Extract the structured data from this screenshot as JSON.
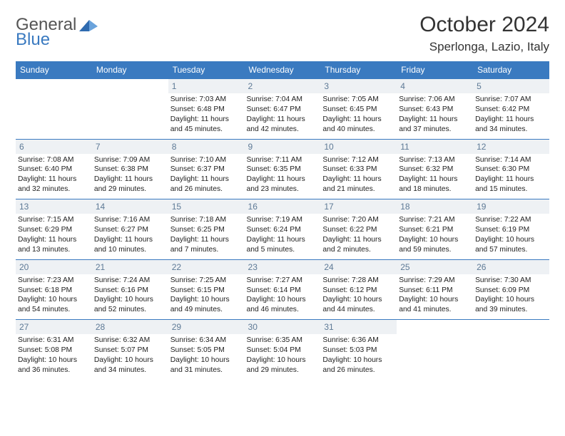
{
  "logo": {
    "text_top": "General",
    "text_bottom": "Blue"
  },
  "title": {
    "month_year": "October 2024",
    "location": "Sperlonga, Lazio, Italy"
  },
  "colors": {
    "header_bg": "#3a7ac0",
    "header_text": "#ffffff",
    "daynum_bg": "#eef1f4",
    "daynum_text": "#5e7a96",
    "rule": "#3a7ac0",
    "body_text": "#222222"
  },
  "day_headers": [
    "Sunday",
    "Monday",
    "Tuesday",
    "Wednesday",
    "Thursday",
    "Friday",
    "Saturday"
  ],
  "weeks": [
    [
      null,
      null,
      {
        "n": "1",
        "sunrise": "7:03 AM",
        "sunset": "6:48 PM",
        "day_h": "11",
        "day_m": "45"
      },
      {
        "n": "2",
        "sunrise": "7:04 AM",
        "sunset": "6:47 PM",
        "day_h": "11",
        "day_m": "42"
      },
      {
        "n": "3",
        "sunrise": "7:05 AM",
        "sunset": "6:45 PM",
        "day_h": "11",
        "day_m": "40"
      },
      {
        "n": "4",
        "sunrise": "7:06 AM",
        "sunset": "6:43 PM",
        "day_h": "11",
        "day_m": "37"
      },
      {
        "n": "5",
        "sunrise": "7:07 AM",
        "sunset": "6:42 PM",
        "day_h": "11",
        "day_m": "34"
      }
    ],
    [
      {
        "n": "6",
        "sunrise": "7:08 AM",
        "sunset": "6:40 PM",
        "day_h": "11",
        "day_m": "32"
      },
      {
        "n": "7",
        "sunrise": "7:09 AM",
        "sunset": "6:38 PM",
        "day_h": "11",
        "day_m": "29"
      },
      {
        "n": "8",
        "sunrise": "7:10 AM",
        "sunset": "6:37 PM",
        "day_h": "11",
        "day_m": "26"
      },
      {
        "n": "9",
        "sunrise": "7:11 AM",
        "sunset": "6:35 PM",
        "day_h": "11",
        "day_m": "23"
      },
      {
        "n": "10",
        "sunrise": "7:12 AM",
        "sunset": "6:33 PM",
        "day_h": "11",
        "day_m": "21"
      },
      {
        "n": "11",
        "sunrise": "7:13 AM",
        "sunset": "6:32 PM",
        "day_h": "11",
        "day_m": "18"
      },
      {
        "n": "12",
        "sunrise": "7:14 AM",
        "sunset": "6:30 PM",
        "day_h": "11",
        "day_m": "15"
      }
    ],
    [
      {
        "n": "13",
        "sunrise": "7:15 AM",
        "sunset": "6:29 PM",
        "day_h": "11",
        "day_m": "13"
      },
      {
        "n": "14",
        "sunrise": "7:16 AM",
        "sunset": "6:27 PM",
        "day_h": "11",
        "day_m": "10"
      },
      {
        "n": "15",
        "sunrise": "7:18 AM",
        "sunset": "6:25 PM",
        "day_h": "11",
        "day_m": "7"
      },
      {
        "n": "16",
        "sunrise": "7:19 AM",
        "sunset": "6:24 PM",
        "day_h": "11",
        "day_m": "5"
      },
      {
        "n": "17",
        "sunrise": "7:20 AM",
        "sunset": "6:22 PM",
        "day_h": "11",
        "day_m": "2"
      },
      {
        "n": "18",
        "sunrise": "7:21 AM",
        "sunset": "6:21 PM",
        "day_h": "10",
        "day_m": "59"
      },
      {
        "n": "19",
        "sunrise": "7:22 AM",
        "sunset": "6:19 PM",
        "day_h": "10",
        "day_m": "57"
      }
    ],
    [
      {
        "n": "20",
        "sunrise": "7:23 AM",
        "sunset": "6:18 PM",
        "day_h": "10",
        "day_m": "54"
      },
      {
        "n": "21",
        "sunrise": "7:24 AM",
        "sunset": "6:16 PM",
        "day_h": "10",
        "day_m": "52"
      },
      {
        "n": "22",
        "sunrise": "7:25 AM",
        "sunset": "6:15 PM",
        "day_h": "10",
        "day_m": "49"
      },
      {
        "n": "23",
        "sunrise": "7:27 AM",
        "sunset": "6:14 PM",
        "day_h": "10",
        "day_m": "46"
      },
      {
        "n": "24",
        "sunrise": "7:28 AM",
        "sunset": "6:12 PM",
        "day_h": "10",
        "day_m": "44"
      },
      {
        "n": "25",
        "sunrise": "7:29 AM",
        "sunset": "6:11 PM",
        "day_h": "10",
        "day_m": "41"
      },
      {
        "n": "26",
        "sunrise": "7:30 AM",
        "sunset": "6:09 PM",
        "day_h": "10",
        "day_m": "39"
      }
    ],
    [
      {
        "n": "27",
        "sunrise": "6:31 AM",
        "sunset": "5:08 PM",
        "day_h": "10",
        "day_m": "36"
      },
      {
        "n": "28",
        "sunrise": "6:32 AM",
        "sunset": "5:07 PM",
        "day_h": "10",
        "day_m": "34"
      },
      {
        "n": "29",
        "sunrise": "6:34 AM",
        "sunset": "5:05 PM",
        "day_h": "10",
        "day_m": "31"
      },
      {
        "n": "30",
        "sunrise": "6:35 AM",
        "sunset": "5:04 PM",
        "day_h": "10",
        "day_m": "29"
      },
      {
        "n": "31",
        "sunrise": "6:36 AM",
        "sunset": "5:03 PM",
        "day_h": "10",
        "day_m": "26"
      },
      null,
      null
    ]
  ],
  "labels": {
    "sunrise": "Sunrise:",
    "sunset": "Sunset:",
    "daylight": "Daylight:",
    "hours": "hours",
    "and": "and",
    "minutes": "minutes."
  }
}
